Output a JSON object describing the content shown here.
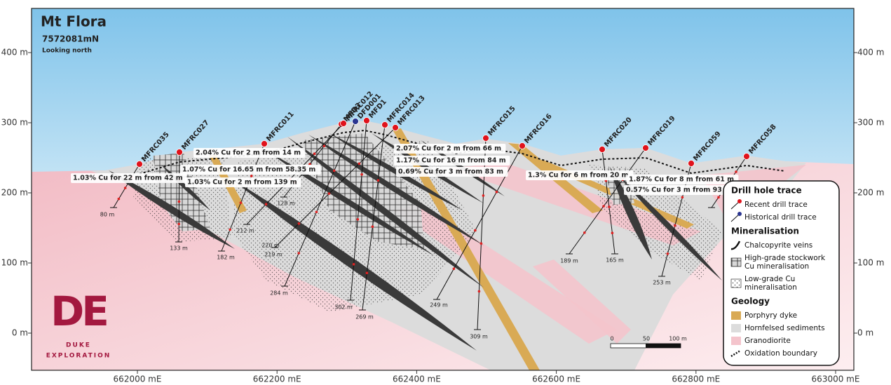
{
  "header": {
    "title": "Mt Flora",
    "northing": "7572081mN",
    "view": "Looking north"
  },
  "axes": {
    "elevation": [
      "400 m",
      "300 m",
      "200 m",
      "100 m",
      "0 m"
    ],
    "easting": [
      "662000 mE",
      "662200 mE",
      "662400 mE",
      "662600 mE",
      "662800 mE",
      "663000 mE"
    ]
  },
  "drill_holes": [
    {
      "name": "MFRC035",
      "color": "#e0131c"
    },
    {
      "name": "MFRC027",
      "color": "#e0131c"
    },
    {
      "name": "MFRC011",
      "color": "#e0131c"
    },
    {
      "name": "MFD3",
      "color": "#e0131c"
    },
    {
      "name": "MFRC012",
      "color": "#e0131c"
    },
    {
      "name": "DFD001",
      "color": "#2a3590"
    },
    {
      "name": "MFD1",
      "color": "#e0131c"
    },
    {
      "name": "MFRC014",
      "color": "#e0131c"
    },
    {
      "name": "MFRC013",
      "color": "#e0131c"
    },
    {
      "name": "MFRC015",
      "color": "#e0131c"
    },
    {
      "name": "MFRC016",
      "color": "#e0131c"
    },
    {
      "name": "MFRC020",
      "color": "#e0131c"
    },
    {
      "name": "MFRC019",
      "color": "#e0131c"
    },
    {
      "name": "MFRC059",
      "color": "#e0131c"
    },
    {
      "name": "MFRC058",
      "color": "#e0131c"
    }
  ],
  "depth_labels": [
    "80 m",
    "133 m",
    "182 m",
    "212 m",
    "128 m",
    "220 m",
    "219 m",
    "284 m",
    "302 m",
    "269 m",
    "249 m",
    "309 m",
    "189 m",
    "165 m",
    "253 m"
  ],
  "intercepts": [
    "2.04% Cu for 2 m from 14 m",
    "1.07% Cu for 16.65 m from 58.35 m",
    "1.03% Cu for 22 m from 42 m",
    "1.03% Cu for 2 m from 139 m",
    "2.07% Cu for 2 m from 66 m",
    "1.17% Cu for 16 m from 84 m",
    "0.69% Cu for 3 m from 83 m",
    "1.3% Cu for 6 m from 20 m",
    "1.87% Cu for 8 m from 61 m",
    "0.57% Cu for 3 m from 93 m"
  ],
  "legend": {
    "drill_hole_trace": {
      "title": "Drill hole trace",
      "items": [
        [
          "Recent drill trace"
        ],
        [
          "Historical drill trace"
        ]
      ]
    },
    "mineralisation": {
      "title": "Mineralisation",
      "items": [
        [
          "Chalcopyrite veins"
        ],
        [
          "High-grade stockwork",
          "Cu mineralisation"
        ],
        [
          "Low-grade Cu",
          "mineralisation"
        ]
      ]
    },
    "geology": {
      "title": "Geology",
      "items": [
        [
          "Porphyry dyke"
        ],
        [
          "Hornfelsed sediments"
        ],
        [
          "Granodiorite"
        ],
        [
          "Oxidation boundary"
        ]
      ]
    }
  },
  "scale_bar": [
    "0",
    "50",
    "100 m"
  ],
  "logo": {
    "mark": "DE",
    "name": "DUKE",
    "tagline": "EXPLORATION"
  }
}
